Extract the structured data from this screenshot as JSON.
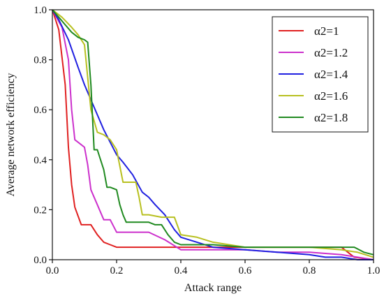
{
  "chart_data": {
    "type": "line",
    "title": "",
    "xlabel": "Attack  range",
    "ylabel": "Average network  efficiency",
    "xlim": [
      0,
      1
    ],
    "ylim": [
      0,
      1
    ],
    "xticks": [
      0.0,
      0.2,
      0.4,
      0.6,
      0.8,
      1.0
    ],
    "yticks": [
      0.0,
      0.2,
      0.4,
      0.6,
      0.8,
      1.0
    ],
    "xtick_labels": [
      "0.0",
      "0.2",
      "0.4",
      "0.6",
      "0.8",
      "1.0"
    ],
    "ytick_labels": [
      "0.0",
      "0.2",
      "0.4",
      "0.6",
      "0.8",
      "1.0"
    ],
    "grid": false,
    "legend_position": "top-right",
    "series": [
      {
        "name": "α2=1",
        "color": "#e02020",
        "x": [
          0.0,
          0.02,
          0.04,
          0.05,
          0.06,
          0.07,
          0.09,
          0.1,
          0.12,
          0.14,
          0.16,
          0.18,
          0.2,
          0.3,
          0.4,
          0.5,
          0.6,
          0.7,
          0.8,
          0.9,
          0.94,
          1.0
        ],
        "y": [
          1.0,
          0.92,
          0.7,
          0.45,
          0.3,
          0.21,
          0.14,
          0.14,
          0.14,
          0.1,
          0.07,
          0.06,
          0.05,
          0.05,
          0.05,
          0.05,
          0.05,
          0.05,
          0.05,
          0.05,
          0.01,
          0.0
        ]
      },
      {
        "name": "α2=1.2",
        "color": "#cc30cc",
        "x": [
          0.0,
          0.03,
          0.05,
          0.06,
          0.07,
          0.08,
          0.1,
          0.11,
          0.12,
          0.14,
          0.16,
          0.18,
          0.2,
          0.24,
          0.3,
          0.35,
          0.4,
          0.5,
          0.6,
          0.7,
          0.8,
          0.9,
          0.95,
          1.0
        ],
        "y": [
          1.0,
          0.93,
          0.8,
          0.6,
          0.48,
          0.47,
          0.45,
          0.38,
          0.28,
          0.22,
          0.16,
          0.16,
          0.11,
          0.11,
          0.11,
          0.08,
          0.04,
          0.04,
          0.04,
          0.03,
          0.03,
          0.02,
          0.01,
          0.0
        ]
      },
      {
        "name": "α2=1.4",
        "color": "#2020e0",
        "x": [
          0.0,
          0.02,
          0.05,
          0.08,
          0.1,
          0.12,
          0.14,
          0.16,
          0.18,
          0.2,
          0.22,
          0.25,
          0.28,
          0.3,
          0.32,
          0.35,
          0.38,
          0.4,
          0.45,
          0.5,
          0.6,
          0.7,
          0.8,
          0.85,
          0.9,
          0.95,
          1.0
        ],
        "y": [
          1.0,
          0.96,
          0.88,
          0.77,
          0.7,
          0.64,
          0.58,
          0.52,
          0.47,
          0.42,
          0.39,
          0.34,
          0.27,
          0.25,
          0.22,
          0.18,
          0.12,
          0.09,
          0.07,
          0.05,
          0.04,
          0.03,
          0.02,
          0.01,
          0.01,
          0.0,
          0.0
        ]
      },
      {
        "name": "α2=1.6",
        "color": "#b8c020",
        "x": [
          0.0,
          0.03,
          0.06,
          0.08,
          0.1,
          0.12,
          0.14,
          0.16,
          0.18,
          0.2,
          0.22,
          0.25,
          0.26,
          0.27,
          0.28,
          0.3,
          0.34,
          0.36,
          0.38,
          0.4,
          0.45,
          0.5,
          0.55,
          0.6,
          0.7,
          0.8,
          0.9,
          0.95,
          1.0
        ],
        "y": [
          1.0,
          0.97,
          0.93,
          0.9,
          0.86,
          0.6,
          0.51,
          0.5,
          0.48,
          0.44,
          0.31,
          0.31,
          0.31,
          0.25,
          0.18,
          0.18,
          0.17,
          0.17,
          0.17,
          0.1,
          0.09,
          0.07,
          0.06,
          0.05,
          0.05,
          0.05,
          0.04,
          0.03,
          0.01
        ]
      },
      {
        "name": "α2=1.8",
        "color": "#208a20",
        "x": [
          0.0,
          0.02,
          0.04,
          0.06,
          0.08,
          0.1,
          0.11,
          0.12,
          0.13,
          0.14,
          0.16,
          0.17,
          0.18,
          0.2,
          0.21,
          0.22,
          0.23,
          0.25,
          0.3,
          0.32,
          0.34,
          0.36,
          0.38,
          0.4,
          0.5,
          0.6,
          0.7,
          0.8,
          0.9,
          0.94,
          0.97,
          1.0
        ],
        "y": [
          1.0,
          0.97,
          0.94,
          0.91,
          0.89,
          0.88,
          0.87,
          0.7,
          0.44,
          0.44,
          0.36,
          0.29,
          0.29,
          0.28,
          0.22,
          0.18,
          0.15,
          0.15,
          0.15,
          0.14,
          0.14,
          0.1,
          0.07,
          0.06,
          0.06,
          0.05,
          0.05,
          0.05,
          0.05,
          0.05,
          0.03,
          0.02
        ]
      }
    ]
  }
}
